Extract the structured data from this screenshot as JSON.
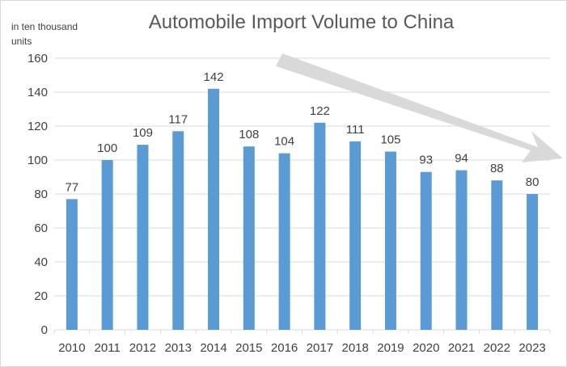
{
  "chart_data": {
    "type": "bar",
    "title": "Automobile Import Volume to China",
    "ylabel": "in ten thousand units",
    "xlabel": "",
    "categories": [
      "2010",
      "2011",
      "2012",
      "2013",
      "2014",
      "2015",
      "2016",
      "2017",
      "2018",
      "2019",
      "2020",
      "2021",
      "2022",
      "2023"
    ],
    "values": [
      77,
      100,
      109,
      117,
      142,
      108,
      104,
      122,
      111,
      105,
      93,
      94,
      88,
      80
    ],
    "ylim": [
      0,
      160
    ],
    "yticks": [
      0,
      20,
      40,
      60,
      80,
      100,
      120,
      140,
      160
    ],
    "grid": true,
    "legend": "none",
    "annotation": "downward trend arrow",
    "colors": {
      "bar": "#5b9bd5",
      "grid": "#d9d9d9",
      "arrow": "#d9d9d9",
      "text": "#404040",
      "title": "#595959"
    }
  }
}
